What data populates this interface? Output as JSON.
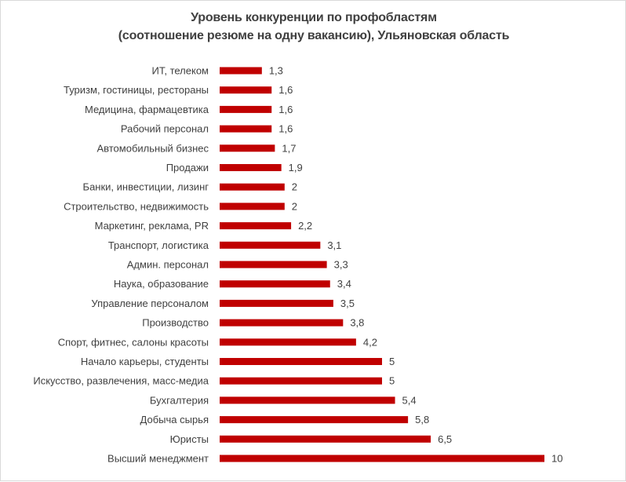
{
  "chart_data": {
    "type": "bar",
    "orientation": "horizontal",
    "title": "Уровень конкуренции по профобластям",
    "subtitle": "(соотношение резюме на одну вакансию), Ульяновская область",
    "categories": [
      "ИТ, телеком",
      "Туризм, гостиницы, рестораны",
      "Медицина, фармацевтика",
      "Рабочий персонал",
      "Автомобильный бизнес",
      "Продажи",
      "Банки, инвестиции, лизинг",
      "Строительство, недвижимость",
      "Маркетинг, реклама, PR",
      "Транспорт, логистика",
      "Админ. персонал",
      "Наука, образование",
      "Управление персоналом",
      "Производство",
      "Спорт, фитнес, салоны красоты",
      "Начало карьеры, студенты",
      "Искусство, развлечения, масс-медиа",
      "Бухгалтерия",
      "Добыча сырья",
      "Юристы",
      "Высший менеджмент"
    ],
    "values": [
      1.3,
      1.6,
      1.6,
      1.6,
      1.7,
      1.9,
      2,
      2,
      2.2,
      3.1,
      3.3,
      3.4,
      3.5,
      3.8,
      4.2,
      5,
      5,
      5.4,
      5.8,
      6.5,
      10
    ],
    "value_labels": [
      "1,3",
      "1,6",
      "1,6",
      "1,6",
      "1,7",
      "1,9",
      "2",
      "2",
      "2,2",
      "3,1",
      "3,3",
      "3,4",
      "3,5",
      "3,8",
      "4,2",
      "5",
      "5",
      "5,4",
      "5,8",
      "6,5",
      "10"
    ],
    "xlim": [
      0,
      10
    ],
    "grid": false,
    "legend": "none",
    "bar_color": "#c00000"
  }
}
